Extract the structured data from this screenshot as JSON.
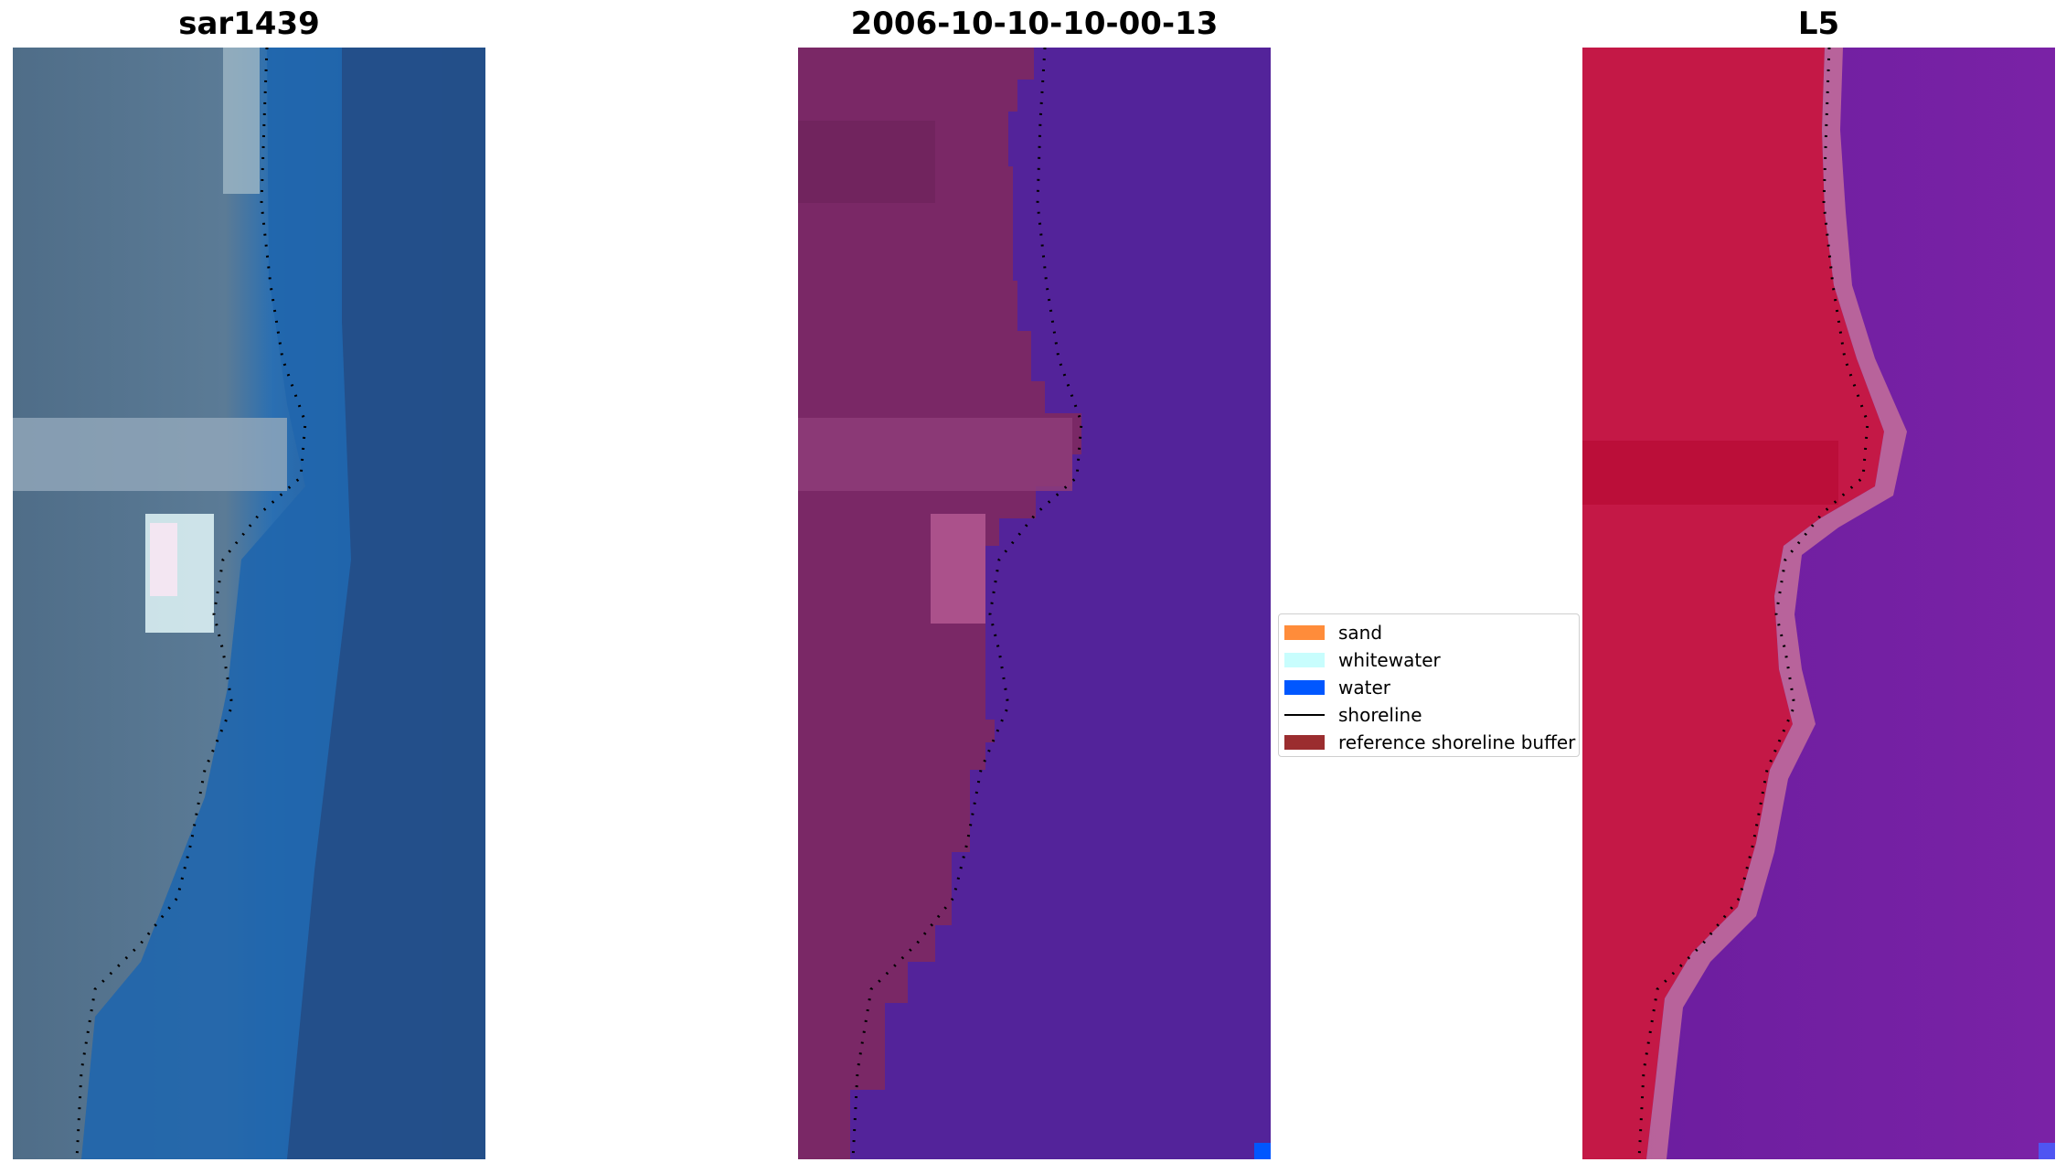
{
  "panels": [
    {
      "title": "sar1439",
      "style": "rgb"
    },
    {
      "title": "2006-10-10-10-00-13",
      "style": "classified"
    },
    {
      "title": "L5",
      "style": "index"
    }
  ],
  "legend": {
    "items": [
      {
        "label": "sand",
        "color": "#ff8c3a"
      },
      {
        "label": "whitewater",
        "color": "#c8fdfd"
      },
      {
        "label": "water",
        "color": "#0057ff"
      },
      {
        "label": "shoreline",
        "color": "#000000"
      },
      {
        "label": "reference shoreline buffer",
        "color": "#9b2d2f"
      }
    ]
  },
  "colors": {
    "rgb_land": "#5a7590",
    "rgb_water": "#1f5da3",
    "classified_land": "#7a2866",
    "classified_water": "#53239a",
    "index_land": "#c41846",
    "index_water": "#6f1ea2"
  }
}
